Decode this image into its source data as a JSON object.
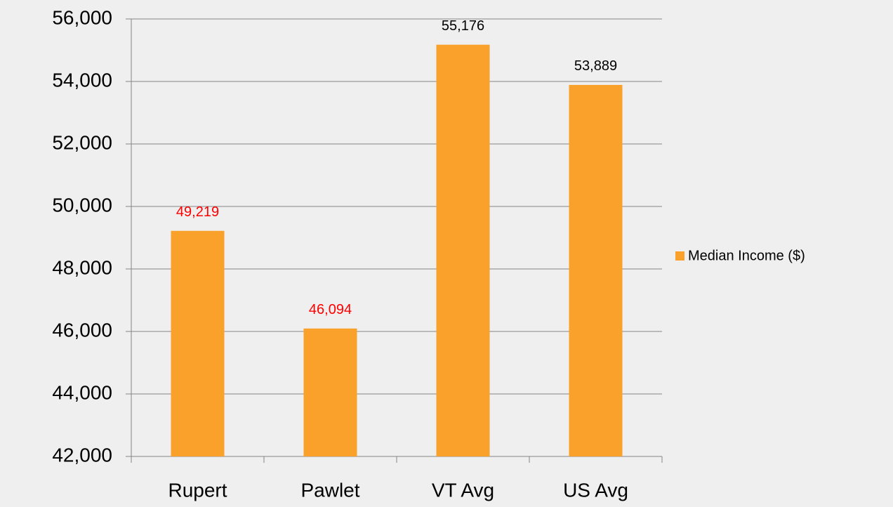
{
  "chart_data": {
    "type": "bar",
    "categories": [
      "Rupert",
      "Pawlet",
      "VT Avg",
      "US Avg"
    ],
    "series": [
      {
        "name": "Median Income ($)",
        "color": "#f9a12a",
        "values": [
          49219,
          46094,
          55176,
          53889
        ],
        "value_labels": [
          "49,219",
          "46,094",
          "55,176",
          "53,889"
        ],
        "value_label_colors": [
          "#ff0000",
          "#ff0000",
          "#000000",
          "#000000"
        ]
      }
    ],
    "ylim": [
      42000,
      56000
    ],
    "yticks": [
      {
        "value": 42000,
        "label": "42,000"
      },
      {
        "value": 44000,
        "label": "44,000"
      },
      {
        "value": 46000,
        "label": "46,000"
      },
      {
        "value": 48000,
        "label": "48,000"
      },
      {
        "value": 50000,
        "label": "50,000"
      },
      {
        "value": 52000,
        "label": "52,000"
      },
      {
        "value": 54000,
        "label": "54,000"
      },
      {
        "value": 56000,
        "label": "56,000"
      }
    ],
    "grid": true,
    "legend": "right"
  }
}
